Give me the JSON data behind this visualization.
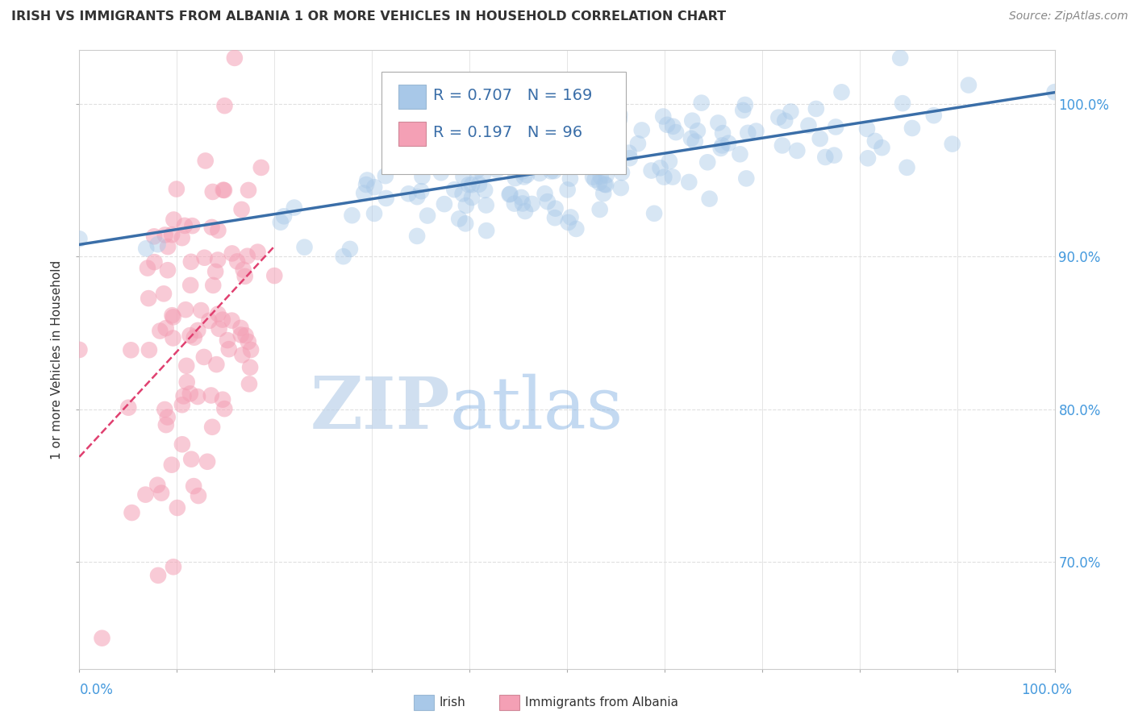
{
  "title": "IRISH VS IMMIGRANTS FROM ALBANIA 1 OR MORE VEHICLES IN HOUSEHOLD CORRELATION CHART",
  "source": "Source: ZipAtlas.com",
  "ylabel": "1 or more Vehicles in Household",
  "legend_irish_R": "0.707",
  "legend_irish_N": "169",
  "legend_albania_R": "0.197",
  "legend_albania_N": "96",
  "irish_color": "#a8c8e8",
  "albania_color": "#f4a0b5",
  "trendline_irish_color": "#3a6ea8",
  "trendline_albania_color": "#e04070",
  "legend_text_color": "#3a6ea8",
  "watermark_zip": "ZIP",
  "watermark_atlas": "atlas",
  "x_min": 0.0,
  "x_max": 100.0,
  "y_min": 63.0,
  "y_max": 103.5,
  "yticks": [
    70,
    80,
    90,
    100
  ],
  "ytick_labels": [
    "70.0%",
    "80.0%",
    "90.0%",
    "100.0%"
  ],
  "background_color": "#ffffff",
  "grid_color": "#e0e0e0"
}
